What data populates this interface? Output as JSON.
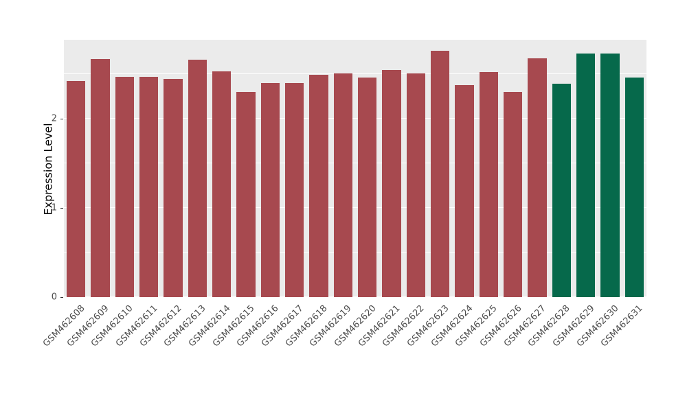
{
  "chart_data": {
    "type": "bar",
    "title": "",
    "xlabel": "",
    "ylabel": "Expression Level",
    "ylim": [
      0,
      2.885
    ],
    "yticks": [
      0,
      1,
      2
    ],
    "minor_ticks": [
      0.5,
      1.5,
      2.5
    ],
    "grid": "on",
    "legend_position": "none",
    "panel_background": "#EBEBEB",
    "categories": [
      "GSM462608",
      "GSM462609",
      "GSM462610",
      "GSM462611",
      "GSM462612",
      "GSM462613",
      "GSM462614",
      "GSM462615",
      "GSM462616",
      "GSM462617",
      "GSM462618",
      "GSM462619",
      "GSM462620",
      "GSM462621",
      "GSM462622",
      "GSM462623",
      "GSM462624",
      "GSM462625",
      "GSM462626",
      "GSM462627",
      "GSM462628",
      "GSM462629",
      "GSM462630",
      "GSM462631"
    ],
    "values": [
      2.42,
      2.67,
      2.47,
      2.47,
      2.45,
      2.66,
      2.53,
      2.3,
      2.4,
      2.4,
      2.49,
      2.51,
      2.46,
      2.55,
      2.51,
      2.76,
      2.38,
      2.52,
      2.3,
      2.68,
      2.39,
      2.73,
      2.73,
      2.46
    ],
    "groups": [
      "A",
      "A",
      "A",
      "A",
      "A",
      "A",
      "A",
      "A",
      "A",
      "A",
      "A",
      "A",
      "A",
      "A",
      "A",
      "A",
      "A",
      "A",
      "A",
      "A",
      "B",
      "B",
      "B",
      "B"
    ],
    "palette": {
      "A": "#A7494F",
      "B": "#06694B"
    }
  }
}
